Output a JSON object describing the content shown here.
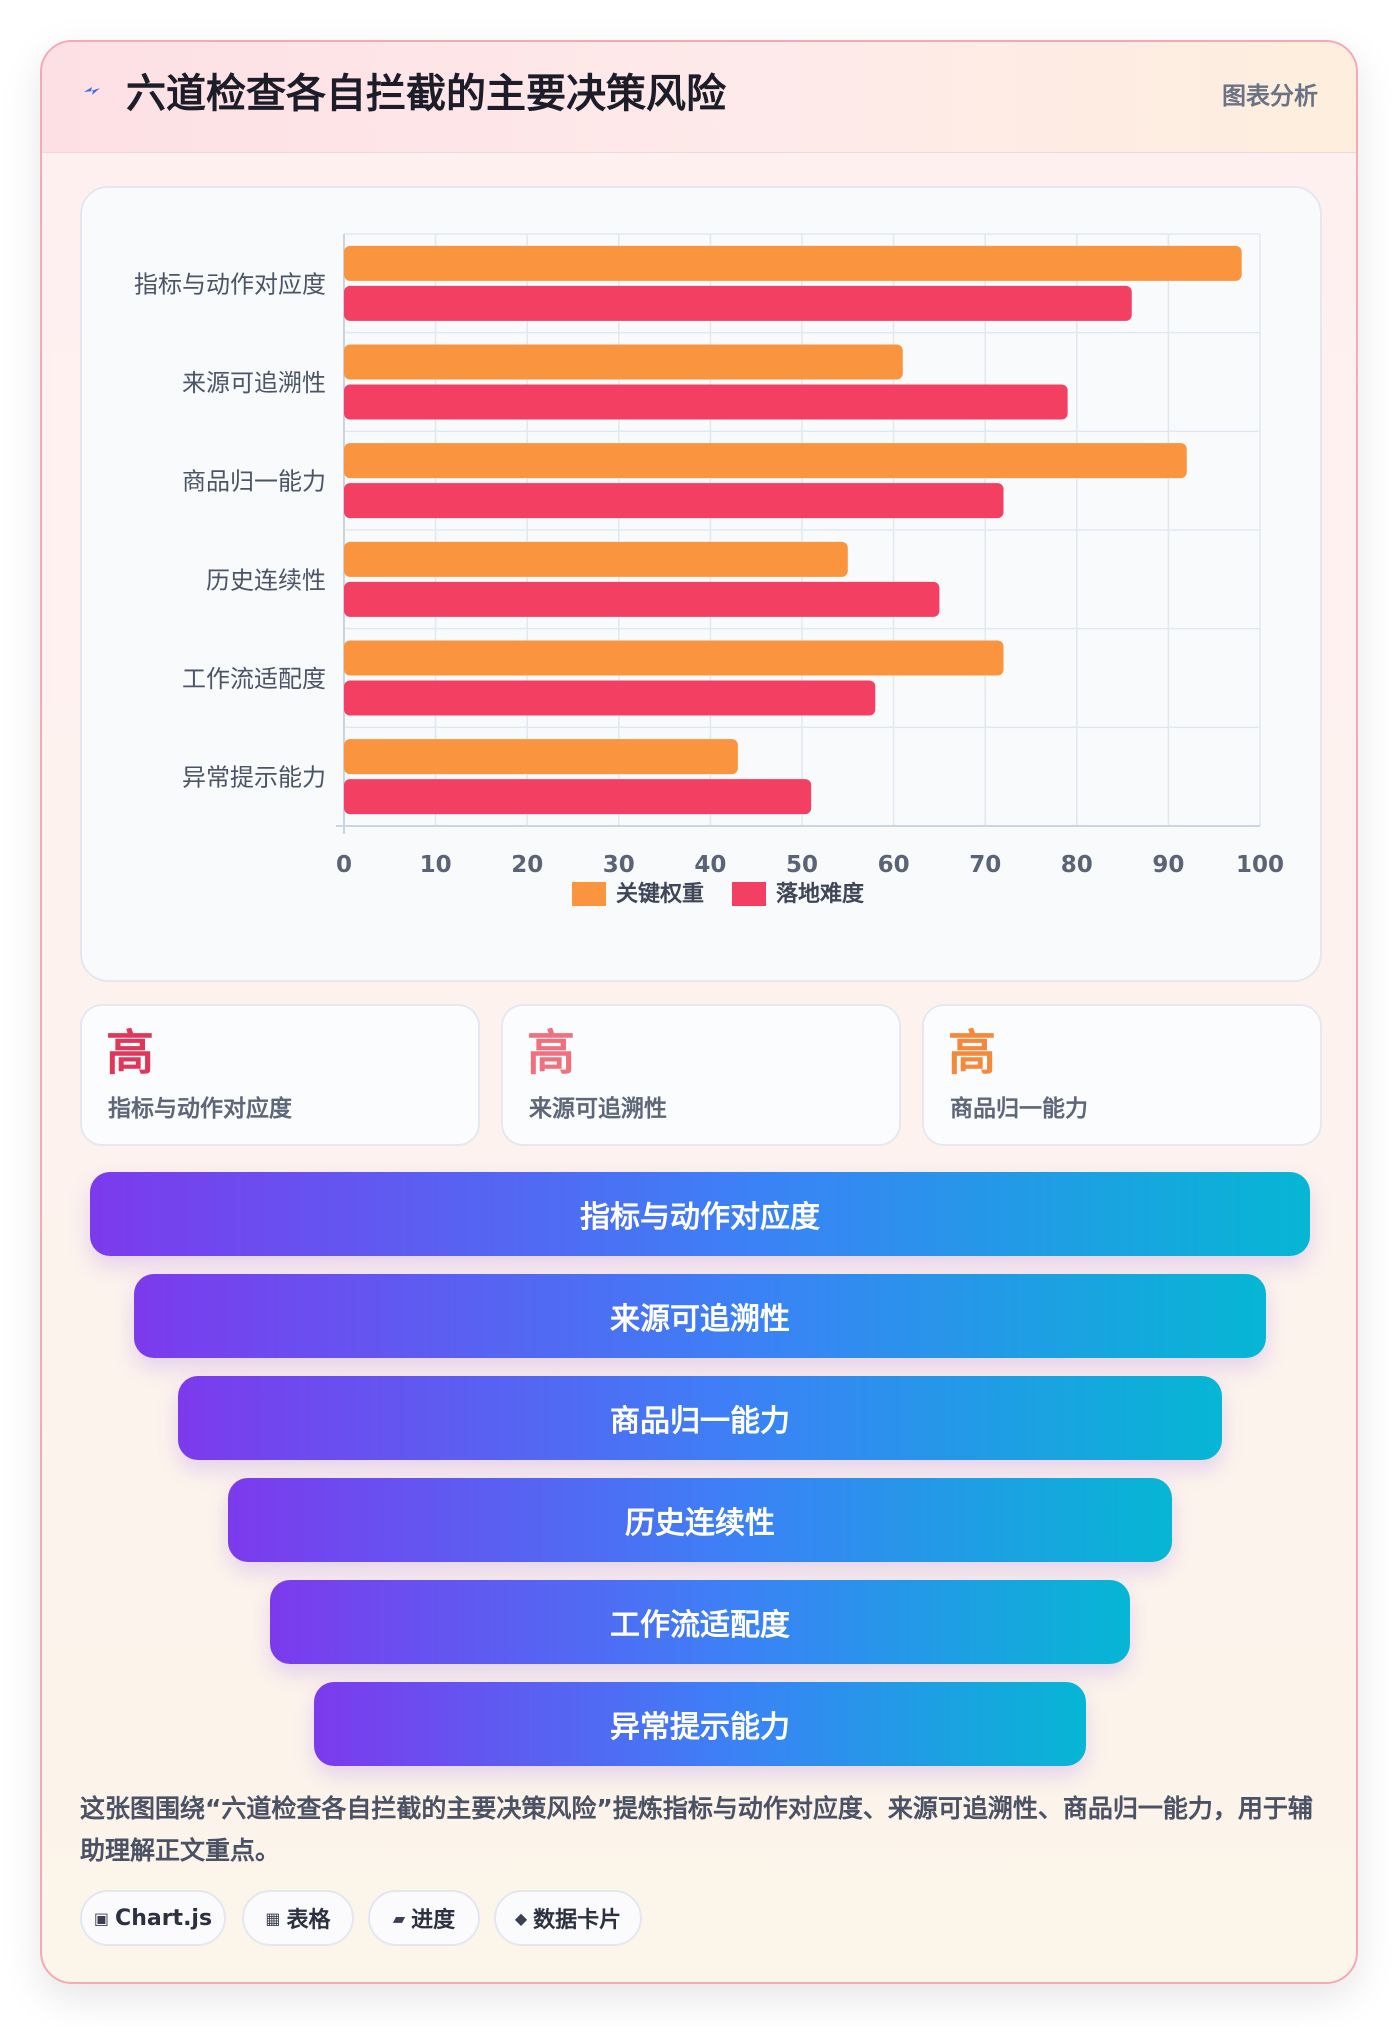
{
  "header": {
    "icon": "lightning-icon",
    "title": "六道检查各自拦截的主要决策风险",
    "tag": "图表分析"
  },
  "colors": {
    "weight": "#fa943e",
    "difficulty": "#f23f62",
    "stat_value_1": "#e0365a",
    "stat_value_2": "#f0707e",
    "stat_value_3": "#f5883b",
    "funnel_start": "#7c3aed",
    "funnel_end": "#06b6d4"
  },
  "chart_data": {
    "type": "bar",
    "orientation": "horizontal",
    "categories": [
      "指标与动作对应度",
      "来源可追溯性",
      "商品归一能力",
      "历史连续性",
      "工作流适配度",
      "异常提示能力"
    ],
    "series": [
      {
        "name": "关键权重",
        "values": [
          98,
          61,
          92,
          55,
          72,
          43
        ],
        "color": "#fa943e"
      },
      {
        "name": "落地难度",
        "values": [
          86,
          79,
          72,
          65,
          58,
          51
        ],
        "color": "#f23f62"
      }
    ],
    "xlim": [
      0,
      100
    ],
    "xticks": [
      0,
      10,
      20,
      30,
      40,
      50,
      60,
      70,
      80,
      90,
      100
    ],
    "grid": true,
    "legend": "bottom"
  },
  "stats": [
    {
      "value": "高",
      "label": "指标与动作对应度"
    },
    {
      "value": "高",
      "label": "来源可追溯性"
    },
    {
      "value": "高",
      "label": "商品归一能力"
    }
  ],
  "funnel": [
    "指标与动作对应度",
    "来源可追溯性",
    "商品归一能力",
    "历史连续性",
    "工作流适配度",
    "异常提示能力"
  ],
  "description": "这张图围绕“六道检查各自拦截的主要决策风险”提炼指标与动作对应度、来源可追溯性、商品归一能力，用于辅助理解正文重点。",
  "chips": [
    {
      "icon": "▣",
      "label": "Chart.js"
    },
    {
      "icon": "▦",
      "label": "表格"
    },
    {
      "icon": "▰",
      "label": "进度"
    },
    {
      "icon": "◆",
      "label": "数据卡片"
    }
  ]
}
